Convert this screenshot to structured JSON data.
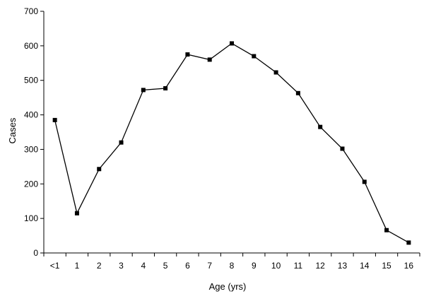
{
  "chart_data": {
    "type": "line",
    "title": "",
    "xlabel": "Age (yrs)",
    "ylabel": "Cases",
    "categories": [
      "<1",
      "1",
      "2",
      "3",
      "4",
      "5",
      "6",
      "7",
      "8",
      "9",
      "10",
      "11",
      "12",
      "13",
      "14",
      "15",
      "16"
    ],
    "series": [
      {
        "values": [
          385,
          115,
          243,
          320,
          472,
          477,
          575,
          560,
          607,
          570,
          523,
          463,
          365,
          302,
          206,
          66,
          30
        ]
      }
    ],
    "ylim": [
      0,
      700
    ],
    "yticks": [
      0,
      100,
      200,
      300,
      400,
      500,
      600,
      700
    ],
    "grid": false,
    "legend": "none",
    "line_color": "#000000",
    "marker": "square"
  }
}
